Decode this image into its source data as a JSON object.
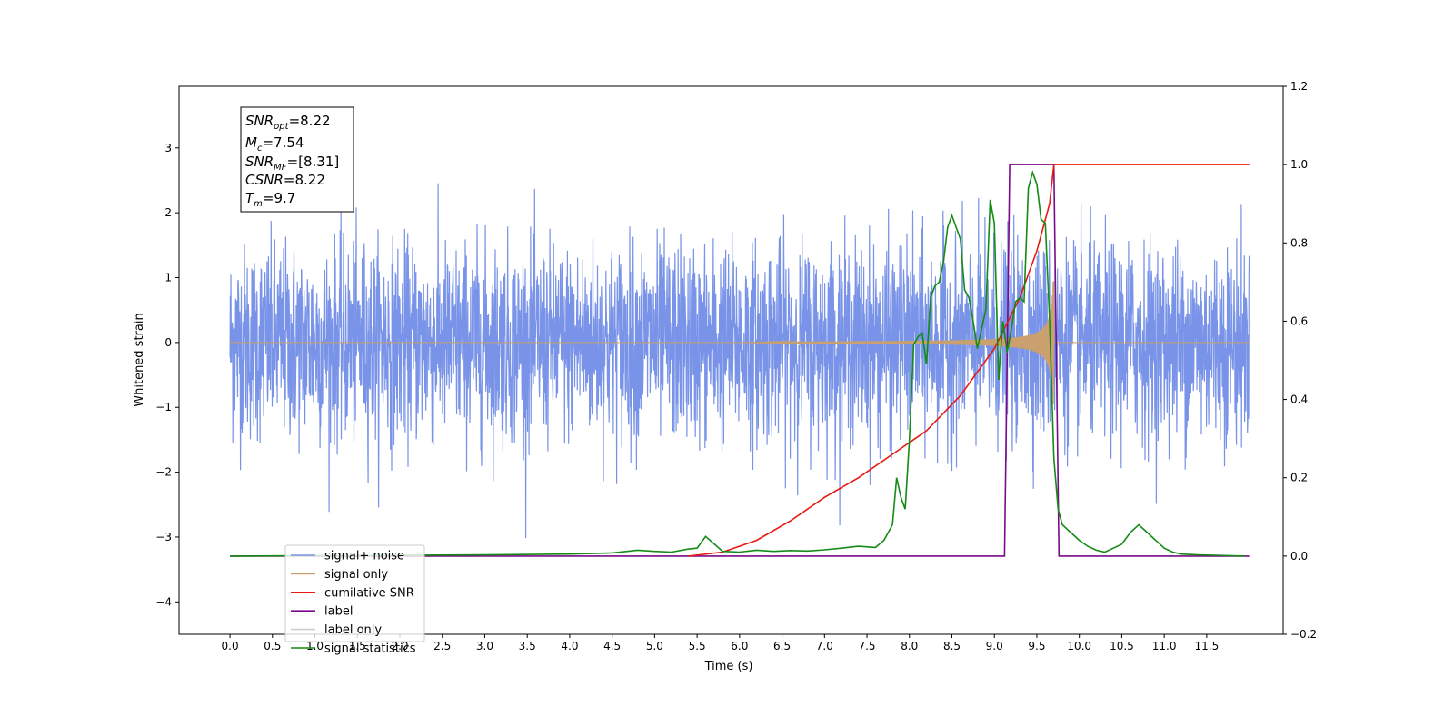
{
  "chart_data": {
    "type": "line",
    "xlabel": "Time (s)",
    "ylabel": "Whitened strain",
    "xlim": [
      -0.6,
      12.4
    ],
    "ylim_left": [
      -4.5,
      3.95
    ],
    "ylim_right": [
      -0.2,
      1.2
    ],
    "x_ticks": [
      "0.0",
      "0.5",
      "1.0",
      "1.5",
      "2.0",
      "2.5",
      "3.0",
      "3.5",
      "4.0",
      "4.5",
      "5.0",
      "5.5",
      "6.0",
      "6.5",
      "7.0",
      "7.5",
      "8.0",
      "8.5",
      "9.0",
      "9.5",
      "10.0",
      "10.5",
      "11.0",
      "11.5"
    ],
    "y_ticks_left": [
      "−4",
      "−3",
      "−2",
      "−1",
      "0",
      "1",
      "2",
      "3"
    ],
    "y_ticks_right": [
      "−0.2",
      "0.0",
      "0.2",
      "0.4",
      "0.6",
      "0.8",
      "1.0",
      "1.2"
    ],
    "grid": false,
    "legend_position": "lower-left",
    "annotation": {
      "snr_opt": {
        "sym": "SNR",
        "sub": "opt",
        "val": "=8.22"
      },
      "mc": {
        "sym": "M",
        "sub": "c",
        "val": "=7.54"
      },
      "snr_mf": {
        "sym": "SNR",
        "sub": "MF",
        "val": "=[8.31]"
      },
      "csnr": {
        "sym": "CSNR",
        "val": "=8.22"
      },
      "tm": {
        "sym": "T",
        "sub": "m",
        "val": "=9.7"
      }
    },
    "series": [
      {
        "name": "signal+ noise",
        "axis": "left",
        "color": "#7893e8",
        "description_shape": "white gaussian noise, std ~0.75, t 0 to 12",
        "noise_std": 0.75
      },
      {
        "name": "signal only",
        "axis": "left",
        "color": "#c9a06e",
        "chirp_start": 6.0,
        "chirp_end": 9.7,
        "max_amplitude": 0.95
      },
      {
        "name": "cumilative SNR",
        "axis": "right",
        "color": "#e8190f",
        "x": [
          5.4,
          5.8,
          6.2,
          6.6,
          7.0,
          7.4,
          7.8,
          8.2,
          8.6,
          9.0,
          9.3,
          9.5,
          9.65,
          9.7,
          12.0
        ],
        "y": [
          0.0,
          0.01,
          0.04,
          0.09,
          0.15,
          0.2,
          0.26,
          0.32,
          0.41,
          0.53,
          0.66,
          0.78,
          0.9,
          1.0,
          1.0
        ]
      },
      {
        "name": "label",
        "axis": "right",
        "color": "#7a0a8a",
        "x": [
          0.0,
          9.12,
          9.18,
          9.7,
          9.76,
          12.0
        ],
        "y": [
          0.0,
          0.0,
          1.0,
          1.0,
          0.0,
          0.0
        ]
      },
      {
        "name": "label only",
        "axis": "right",
        "color": "#cccccc",
        "x": [],
        "y": []
      },
      {
        "name": "signal statistics",
        "axis": "right",
        "color": "#158a15",
        "x": [
          0.0,
          3.0,
          4.0,
          4.5,
          4.8,
          5.0,
          5.2,
          5.4,
          5.5,
          5.6,
          5.8,
          6.0,
          6.2,
          6.4,
          6.6,
          6.8,
          7.0,
          7.2,
          7.4,
          7.6,
          7.7,
          7.8,
          7.85,
          7.9,
          7.95,
          8.0,
          8.05,
          8.1,
          8.15,
          8.2,
          8.25,
          8.3,
          8.35,
          8.4,
          8.45,
          8.5,
          8.55,
          8.6,
          8.65,
          8.7,
          8.75,
          8.8,
          8.85,
          8.9,
          8.95,
          9.0,
          9.05,
          9.1,
          9.15,
          9.2,
          9.25,
          9.3,
          9.35,
          9.4,
          9.45,
          9.5,
          9.55,
          9.6,
          9.65,
          9.7,
          9.75,
          9.8,
          9.85,
          9.9,
          10.0,
          10.1,
          10.2,
          10.3,
          10.4,
          10.5,
          10.6,
          10.7,
          10.8,
          10.9,
          11.0,
          11.1,
          11.2,
          11.4,
          11.6,
          11.95
        ],
        "y": [
          0.0,
          0.003,
          0.005,
          0.008,
          0.015,
          0.012,
          0.01,
          0.018,
          0.02,
          0.05,
          0.012,
          0.01,
          0.015,
          0.012,
          0.014,
          0.013,
          0.016,
          0.02,
          0.025,
          0.022,
          0.04,
          0.08,
          0.2,
          0.15,
          0.12,
          0.3,
          0.54,
          0.56,
          0.57,
          0.49,
          0.66,
          0.69,
          0.7,
          0.75,
          0.84,
          0.87,
          0.84,
          0.81,
          0.68,
          0.66,
          0.6,
          0.53,
          0.58,
          0.63,
          0.91,
          0.85,
          0.45,
          0.6,
          0.52,
          0.58,
          0.65,
          0.66,
          0.65,
          0.94,
          0.98,
          0.95,
          0.86,
          0.85,
          0.6,
          0.25,
          0.12,
          0.08,
          0.07,
          0.06,
          0.04,
          0.025,
          0.015,
          0.01,
          0.02,
          0.03,
          0.06,
          0.08,
          0.06,
          0.04,
          0.02,
          0.01,
          0.005,
          0.003,
          0.002,
          0.0
        ]
      }
    ]
  }
}
